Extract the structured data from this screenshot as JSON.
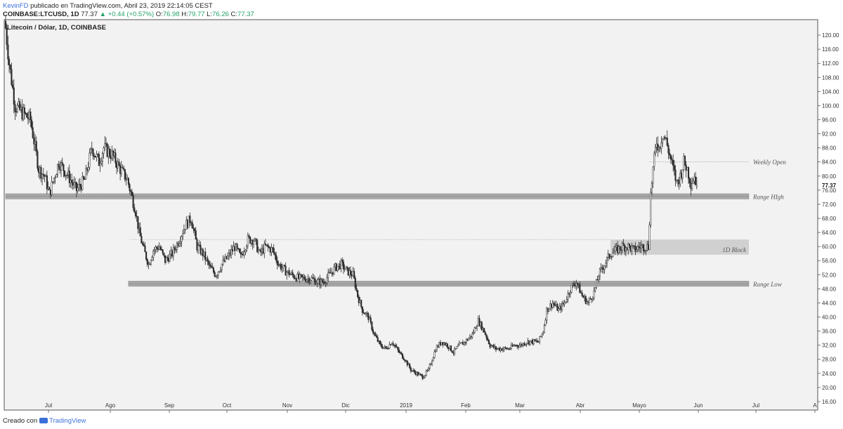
{
  "header": {
    "author": "KevinFD",
    "published_text": "publicado en TradingView.com, Abril 23, 2019 22:14:05 CEST",
    "symbol": "COINBASE:LTCUSD, 1D",
    "last": "77.37",
    "change": "▲ +0.44 (+0.57%)",
    "o_label": "O:",
    "o_value": "76.98",
    "h_label": "H:",
    "h_value": "79.77",
    "l_label": "L:",
    "l_value": "76.26",
    "c_label": "C:",
    "c_value": "77.37"
  },
  "footer": {
    "created_with": "Creado con",
    "brand": "TradingView"
  },
  "colors": {
    "up": "#22a168",
    "author": "#3a6fd8",
    "candle": "#2a2a2a",
    "zone": "#a8a8a8",
    "block": "#d0d0d0"
  },
  "chart_data": {
    "type": "candlestick",
    "title": "Litecoin / Dólar, 1D, COINBASE",
    "x_labels": [
      "Jul",
      "Ago",
      "Sep",
      "Oct",
      "Nov",
      "Dic",
      "2019",
      "Feb",
      "Mar",
      "Abr",
      "Mayo",
      "Jun",
      "Jul",
      "A"
    ],
    "y_ticks": [
      16,
      20,
      24,
      28,
      32,
      36,
      40,
      44,
      48,
      52,
      56,
      60,
      64,
      68,
      72,
      76,
      80,
      84,
      88,
      92,
      96,
      100,
      104,
      108,
      112,
      116,
      120
    ],
    "ylim": [
      14,
      124
    ],
    "last_price": 77.37,
    "grid": false,
    "zones": [
      {
        "label": "Range HIgh",
        "low": 73.5,
        "high": 75.0,
        "start_day": 0,
        "style": "band"
      },
      {
        "label": "Range Low",
        "low": 48.7,
        "high": 50.2,
        "start_day": 104,
        "style": "band"
      },
      {
        "label": "1D Block",
        "low": 57.7,
        "high": 62.0,
        "start_day": 512,
        "style": "block"
      }
    ],
    "lines": [
      {
        "label": "Weekly Open",
        "value": 84.0,
        "start_day": 545,
        "end_day": 685
      },
      {
        "label": "",
        "value": 62.0,
        "start_day": 105,
        "end_day": 512
      }
    ],
    "anchors": [
      {
        "day": 0,
        "price": 122
      },
      {
        "day": 3,
        "price": 112
      },
      {
        "day": 8,
        "price": 100
      },
      {
        "day": 14,
        "price": 98
      },
      {
        "day": 21,
        "price": 96
      },
      {
        "day": 28,
        "price": 82
      },
      {
        "day": 33,
        "price": 80
      },
      {
        "day": 37,
        "price": 75
      },
      {
        "day": 45,
        "price": 84
      },
      {
        "day": 53,
        "price": 80
      },
      {
        "day": 60,
        "price": 76
      },
      {
        "day": 67,
        "price": 79
      },
      {
        "day": 73,
        "price": 88
      },
      {
        "day": 79,
        "price": 84
      },
      {
        "day": 83,
        "price": 88
      },
      {
        "day": 90,
        "price": 86
      },
      {
        "day": 97,
        "price": 82
      },
      {
        "day": 103,
        "price": 79
      },
      {
        "day": 107,
        "price": 74
      },
      {
        "day": 110,
        "price": 70
      },
      {
        "day": 113,
        "price": 64
      },
      {
        "day": 117,
        "price": 59
      },
      {
        "day": 121,
        "price": 55
      },
      {
        "day": 125,
        "price": 59
      },
      {
        "day": 130,
        "price": 60
      },
      {
        "day": 135,
        "price": 56
      },
      {
        "day": 141,
        "price": 58
      },
      {
        "day": 147,
        "price": 62
      },
      {
        "day": 152,
        "price": 66
      },
      {
        "day": 157,
        "price": 68
      },
      {
        "day": 162,
        "price": 60
      },
      {
        "day": 167,
        "price": 58
      },
      {
        "day": 173,
        "price": 54
      },
      {
        "day": 178,
        "price": 52
      },
      {
        "day": 183,
        "price": 55
      },
      {
        "day": 188,
        "price": 57
      },
      {
        "day": 194,
        "price": 60
      },
      {
        "day": 199,
        "price": 57
      },
      {
        "day": 205,
        "price": 62
      },
      {
        "day": 210,
        "price": 62
      },
      {
        "day": 215,
        "price": 58
      },
      {
        "day": 220,
        "price": 60
      },
      {
        "day": 226,
        "price": 59
      },
      {
        "day": 231,
        "price": 55
      },
      {
        "day": 237,
        "price": 53
      },
      {
        "day": 242,
        "price": 52
      },
      {
        "day": 248,
        "price": 51
      },
      {
        "day": 253,
        "price": 51
      },
      {
        "day": 258,
        "price": 51
      },
      {
        "day": 264,
        "price": 50
      },
      {
        "day": 269,
        "price": 50
      },
      {
        "day": 274,
        "price": 52
      },
      {
        "day": 279,
        "price": 54
      },
      {
        "day": 284,
        "price": 55
      },
      {
        "day": 289,
        "price": 53
      },
      {
        "day": 294,
        "price": 52
      },
      {
        "day": 298,
        "price": 46
      },
      {
        "day": 302,
        "price": 42
      },
      {
        "day": 307,
        "price": 40
      },
      {
        "day": 312,
        "price": 35
      },
      {
        "day": 317,
        "price": 32
      },
      {
        "day": 322,
        "price": 31
      },
      {
        "day": 327,
        "price": 33
      },
      {
        "day": 333,
        "price": 30
      },
      {
        "day": 338,
        "price": 28
      },
      {
        "day": 343,
        "price": 25
      },
      {
        "day": 348,
        "price": 24
      },
      {
        "day": 353,
        "price": 23
      },
      {
        "day": 358,
        "price": 25
      },
      {
        "day": 364,
        "price": 31
      },
      {
        "day": 369,
        "price": 33
      },
      {
        "day": 374,
        "price": 32
      },
      {
        "day": 379,
        "price": 30
      },
      {
        "day": 384,
        "price": 32
      },
      {
        "day": 389,
        "price": 33
      },
      {
        "day": 395,
        "price": 35
      },
      {
        "day": 400,
        "price": 39
      },
      {
        "day": 405,
        "price": 36
      },
      {
        "day": 410,
        "price": 32
      },
      {
        "day": 415,
        "price": 31
      },
      {
        "day": 420,
        "price": 31
      },
      {
        "day": 426,
        "price": 31
      },
      {
        "day": 431,
        "price": 32
      },
      {
        "day": 436,
        "price": 32
      },
      {
        "day": 441,
        "price": 33
      },
      {
        "day": 446,
        "price": 33
      },
      {
        "day": 451,
        "price": 33
      },
      {
        "day": 455,
        "price": 36
      },
      {
        "day": 458,
        "price": 42
      },
      {
        "day": 463,
        "price": 44
      },
      {
        "day": 468,
        "price": 42
      },
      {
        "day": 473,
        "price": 44
      },
      {
        "day": 478,
        "price": 48
      },
      {
        "day": 483,
        "price": 50
      },
      {
        "day": 488,
        "price": 46
      },
      {
        "day": 493,
        "price": 44
      },
      {
        "day": 498,
        "price": 47
      },
      {
        "day": 502,
        "price": 52
      },
      {
        "day": 507,
        "price": 55
      },
      {
        "day": 512,
        "price": 58
      },
      {
        "day": 517,
        "price": 59
      },
      {
        "day": 522,
        "price": 60
      },
      {
        "day": 527,
        "price": 60
      },
      {
        "day": 532,
        "price": 59
      },
      {
        "day": 537,
        "price": 60
      },
      {
        "day": 541,
        "price": 60
      },
      {
        "day": 544,
        "price": 60
      },
      {
        "day": 546,
        "price": 75
      },
      {
        "day": 548,
        "price": 82
      },
      {
        "day": 551,
        "price": 90
      },
      {
        "day": 553,
        "price": 88
      },
      {
        "day": 556,
        "price": 92
      },
      {
        "day": 559,
        "price": 90
      },
      {
        "day": 562,
        "price": 86
      },
      {
        "day": 565,
        "price": 82
      },
      {
        "day": 568,
        "price": 78
      },
      {
        "day": 571,
        "price": 80
      },
      {
        "day": 574,
        "price": 84
      },
      {
        "day": 577,
        "price": 82
      },
      {
        "day": 580,
        "price": 78
      },
      {
        "day": 583,
        "price": 80
      },
      {
        "day": 585,
        "price": 77.4
      }
    ]
  }
}
